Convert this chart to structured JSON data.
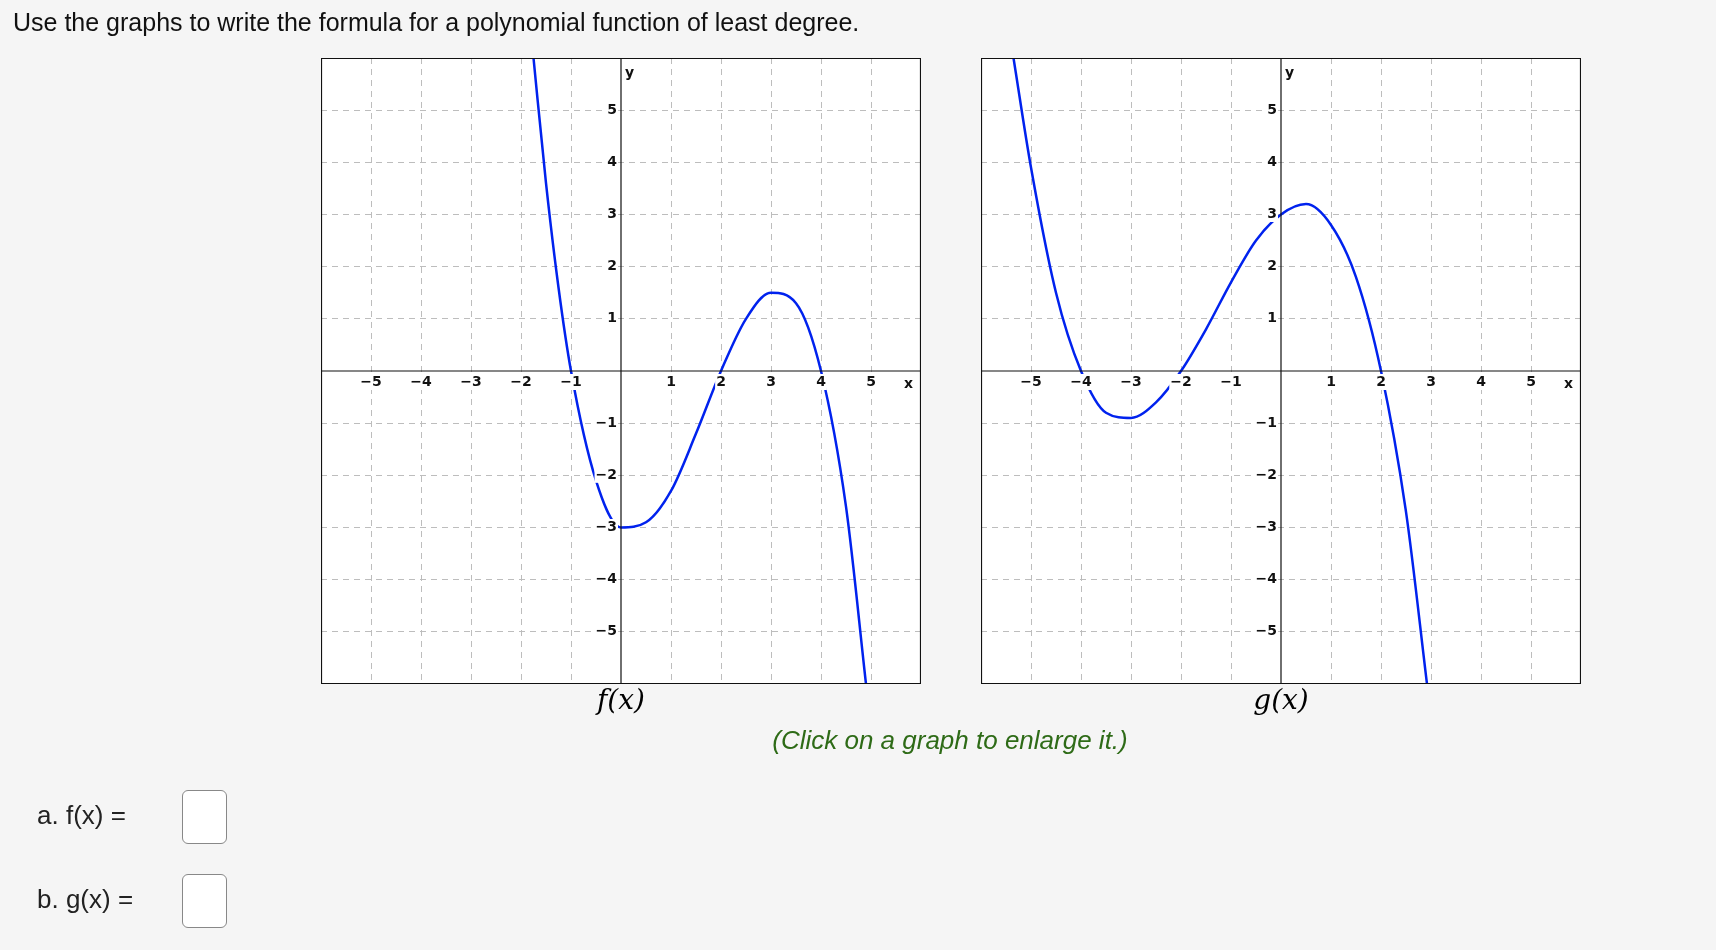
{
  "chart_data": [
    {
      "type": "line",
      "title": "f(x)",
      "xlabel": "x",
      "ylabel": "y",
      "xlim": [
        -6,
        6
      ],
      "ylim": [
        -6,
        6
      ],
      "xticks": [
        -5,
        -4,
        -3,
        -2,
        -1,
        1,
        2,
        3,
        4,
        5
      ],
      "yticks": [
        -5,
        -4,
        -3,
        -2,
        -1,
        1,
        2,
        3,
        4,
        5
      ],
      "grid": true,
      "marker": "none",
      "line_style": "solid",
      "series": [
        {
          "color": "#0022ee",
          "x": [
            -1.75,
            -1.5,
            -1.25,
            -1,
            -0.5,
            0,
            0.5,
            1,
            1.5,
            2,
            2.5,
            3,
            3.5,
            4,
            4.5,
            4.9
          ],
          "values": [
            6,
            3.6,
            1.6,
            0,
            -2.1,
            -3,
            -2.9,
            -2.3,
            -1.2,
            0,
            1,
            1.5,
            1.3,
            0,
            -2.6,
            -6
          ]
        }
      ]
    },
    {
      "type": "line",
      "title": "g(x)",
      "xlabel": "x",
      "ylabel": "y",
      "xlim": [
        -6,
        6
      ],
      "ylim": [
        -6,
        6
      ],
      "xticks": [
        -5,
        -4,
        -3,
        -2,
        -1,
        1,
        2,
        3,
        4,
        5
      ],
      "yticks": [
        -5,
        -4,
        -3,
        -2,
        -1,
        1,
        2,
        3,
        4,
        5
      ],
      "grid": true,
      "marker": "none",
      "line_style": "solid",
      "series": [
        {
          "color": "#0022ee",
          "x": [
            -5.35,
            -5,
            -4.5,
            -4,
            -3.5,
            -3,
            -2.5,
            -2,
            -1.5,
            -1,
            -0.5,
            0,
            0.5,
            1,
            1.5,
            2,
            2.5,
            2.92
          ],
          "values": [
            6,
            3.9,
            1.5,
            0,
            -0.8,
            -0.9,
            -0.6,
            0,
            0.8,
            1.7,
            2.5,
            3,
            3.2,
            2.8,
            1.8,
            0,
            -2.7,
            -6
          ]
        }
      ]
    },
    {
      "type": "other",
      "annotations": [
        "Use the graphs to write the formula for a polynomial function of least degree.",
        "(Click on a graph to enlarge it.)",
        "a. f(x) =",
        "b. g(x) ="
      ]
    }
  ]
}
